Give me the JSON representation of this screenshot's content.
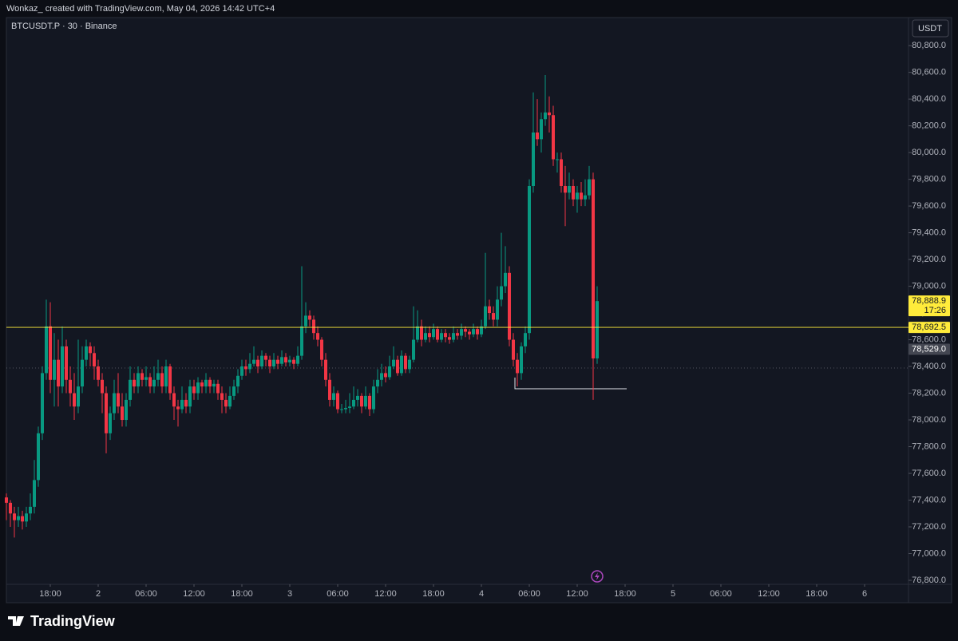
{
  "header": {
    "text": "Wonkaz_ created with TradingView.com, May 04, 2026 14:42 UTC+4"
  },
  "footer": {
    "brand": "TradingView"
  },
  "chart_data": {
    "type": "candlestick",
    "symbol": "BTCUSDT.P · 30 · Binance",
    "currency": "USDT",
    "up_color": "#089981",
    "down_color": "#f23645",
    "grid": false,
    "ylim": [
      76770,
      81010
    ],
    "xlim": [
      0,
      226
    ],
    "yticks": [
      {
        "value": 76800,
        "label": "76,800.0"
      },
      {
        "value": 77000,
        "label": "77,000.0"
      },
      {
        "value": 77200,
        "label": "77,200.0"
      },
      {
        "value": 77400,
        "label": "77,400.0"
      },
      {
        "value": 77600,
        "label": "77,600.0"
      },
      {
        "value": 77800,
        "label": "77,800.0"
      },
      {
        "value": 78000,
        "label": "78,000.0"
      },
      {
        "value": 78200,
        "label": "78,200.0"
      },
      {
        "value": 78400,
        "label": "78,400.0"
      },
      {
        "value": 78600,
        "label": "78,600.0"
      },
      {
        "value": 78800,
        "label": "78,800.0"
      },
      {
        "value": 79000,
        "label": "79,000.0"
      },
      {
        "value": 79200,
        "label": "79,200.0"
      },
      {
        "value": 79400,
        "label": "79,400.0"
      },
      {
        "value": 79600,
        "label": "79,600.0"
      },
      {
        "value": 79800,
        "label": "79,800.0"
      },
      {
        "value": 80000,
        "label": "80,000.0"
      },
      {
        "value": 80200,
        "label": "80,200.0"
      },
      {
        "value": 80400,
        "label": "80,400.0"
      },
      {
        "value": 80600,
        "label": "80,600.0"
      },
      {
        "value": 80800,
        "label": "80,800.0"
      }
    ],
    "xticks": [
      {
        "value": 11,
        "label": "18:00"
      },
      {
        "value": 23,
        "label": "2"
      },
      {
        "value": 35,
        "label": "06:00"
      },
      {
        "value": 47,
        "label": "12:00"
      },
      {
        "value": 59,
        "label": "18:00"
      },
      {
        "value": 71,
        "label": "3"
      },
      {
        "value": 83,
        "label": "06:00"
      },
      {
        "value": 95,
        "label": "12:00"
      },
      {
        "value": 107,
        "label": "18:00"
      },
      {
        "value": 119,
        "label": "4"
      },
      {
        "value": 131,
        "label": "06:00"
      },
      {
        "value": 143,
        "label": "12:00"
      },
      {
        "value": 155,
        "label": "18:00"
      },
      {
        "value": 167,
        "label": "5"
      },
      {
        "value": 179,
        "label": "06:00"
      },
      {
        "value": 191,
        "label": "12:00"
      },
      {
        "value": 203,
        "label": "18:00"
      },
      {
        "value": 215,
        "label": "6"
      }
    ],
    "price_markers": [
      {
        "value": 78888.9,
        "label": "78,888.9",
        "sublabel": "17:26",
        "color": "#ffeb3b",
        "line": false
      },
      {
        "value": 78692.5,
        "label": "78,692.5",
        "color": "#ffeb3b",
        "line": true
      },
      {
        "value": 78529.0,
        "label": "78,529.0",
        "color": "#434651",
        "line": false
      }
    ],
    "ohlc": [
      [
        77420,
        77450,
        77250,
        77380
      ],
      [
        77380,
        77400,
        77200,
        77300
      ],
      [
        77300,
        77350,
        77120,
        77250
      ],
      [
        77250,
        77350,
        77200,
        77280
      ],
      [
        77280,
        77320,
        77180,
        77240
      ],
      [
        77240,
        77350,
        77200,
        77300
      ],
      [
        77300,
        77450,
        77250,
        77350
      ],
      [
        77350,
        77700,
        77300,
        77550
      ],
      [
        77550,
        77950,
        77500,
        77900
      ],
      [
        77900,
        78400,
        77850,
        78350
      ],
      [
        78350,
        78900,
        78300,
        78700
      ],
      [
        78700,
        78880,
        78200,
        78300
      ],
      [
        78300,
        78650,
        78100,
        78450
      ],
      [
        78450,
        78600,
        78100,
        78250
      ],
      [
        78250,
        78700,
        78200,
        78550
      ],
      [
        78550,
        78600,
        78200,
        78300
      ],
      [
        78300,
        78400,
        78100,
        78200
      ],
      [
        78200,
        78350,
        78000,
        78100
      ],
      [
        78100,
        78600,
        78050,
        78250
      ],
      [
        78250,
        78550,
        78200,
        78450
      ],
      [
        78450,
        78600,
        78400,
        78550
      ],
      [
        78550,
        78580,
        78400,
        78500
      ],
      [
        78500,
        78550,
        78300,
        78400
      ],
      [
        78400,
        78450,
        78250,
        78300
      ],
      [
        78300,
        78350,
        78050,
        78200
      ],
      [
        78200,
        78250,
        77750,
        77900
      ],
      [
        77900,
        78100,
        77850,
        78050
      ],
      [
        78050,
        78300,
        78000,
        78200
      ],
      [
        78200,
        78350,
        78050,
        78100
      ],
      [
        78100,
        78200,
        77950,
        78000
      ],
      [
        78000,
        78200,
        77950,
        78150
      ],
      [
        78150,
        78400,
        78100,
        78300
      ],
      [
        78300,
        78350,
        78200,
        78250
      ],
      [
        78250,
        78400,
        78200,
        78350
      ],
      [
        78350,
        78380,
        78250,
        78300
      ],
      [
        78300,
        78400,
        78250,
        78320
      ],
      [
        78320,
        78350,
        78200,
        78250
      ],
      [
        78250,
        78400,
        78200,
        78300
      ],
      [
        78300,
        78450,
        78250,
        78350
      ],
      [
        78350,
        78400,
        78200,
        78250
      ],
      [
        78250,
        78450,
        78200,
        78400
      ],
      [
        78400,
        78420,
        78150,
        78200
      ],
      [
        78200,
        78250,
        78000,
        78100
      ],
      [
        78100,
        78150,
        77950,
        78080
      ],
      [
        78080,
        78250,
        78050,
        78150
      ],
      [
        78150,
        78200,
        78050,
        78100
      ],
      [
        78100,
        78300,
        78050,
        78250
      ],
      [
        78250,
        78300,
        78150,
        78200
      ],
      [
        78200,
        78320,
        78150,
        78280
      ],
      [
        78280,
        78300,
        78200,
        78250
      ],
      [
        78250,
        78350,
        78200,
        78300
      ],
      [
        78300,
        78320,
        78200,
        78250
      ],
      [
        78250,
        78300,
        78200,
        78270
      ],
      [
        78270,
        78300,
        78150,
        78200
      ],
      [
        78200,
        78250,
        78050,
        78150
      ],
      [
        78150,
        78200,
        78050,
        78100
      ],
      [
        78100,
        78250,
        78080,
        78180
      ],
      [
        78180,
        78300,
        78150,
        78250
      ],
      [
        78250,
        78380,
        78200,
        78330
      ],
      [
        78330,
        78450,
        78300,
        78400
      ],
      [
        78400,
        78450,
        78330,
        78380
      ],
      [
        78380,
        78500,
        78350,
        78420
      ],
      [
        78420,
        78550,
        78400,
        78450
      ],
      [
        78450,
        78480,
        78350,
        78400
      ],
      [
        78400,
        78520,
        78380,
        78480
      ],
      [
        78480,
        78500,
        78400,
        78450
      ],
      [
        78450,
        78480,
        78350,
        78400
      ],
      [
        78400,
        78500,
        78380,
        78450
      ],
      [
        78450,
        78480,
        78380,
        78420
      ],
      [
        78420,
        78520,
        78400,
        78470
      ],
      [
        78470,
        78500,
        78400,
        78430
      ],
      [
        78430,
        78480,
        78400,
        78450
      ],
      [
        78450,
        78470,
        78380,
        78420
      ],
      [
        78420,
        78550,
        78400,
        78480
      ],
      [
        78480,
        79150,
        78450,
        78700
      ],
      [
        78700,
        78880,
        78650,
        78780
      ],
      [
        78780,
        78820,
        78700,
        78750
      ],
      [
        78750,
        78780,
        78600,
        78650
      ],
      [
        78650,
        78700,
        78550,
        78600
      ],
      [
        78600,
        78620,
        78400,
        78450
      ],
      [
        78450,
        78500,
        78250,
        78300
      ],
      [
        78300,
        78350,
        78100,
        78150
      ],
      [
        78150,
        78250,
        78100,
        78200
      ],
      [
        78200,
        78220,
        78050,
        78080
      ],
      [
        78080,
        78120,
        78050,
        78080
      ],
      [
        78080,
        78150,
        78050,
        78090
      ],
      [
        78090,
        78200,
        78050,
        78100
      ],
      [
        78100,
        78250,
        78080,
        78150
      ],
      [
        78150,
        78230,
        78100,
        78180
      ],
      [
        78180,
        78200,
        78050,
        78100
      ],
      [
        78100,
        78250,
        78080,
        78180
      ],
      [
        78180,
        78200,
        78030,
        78080
      ],
      [
        78080,
        78300,
        78050,
        78250
      ],
      [
        78250,
        78380,
        78200,
        78300
      ],
      [
        78300,
        78420,
        78250,
        78350
      ],
      [
        78350,
        78400,
        78280,
        78320
      ],
      [
        78320,
        78480,
        78300,
        78400
      ],
      [
        78400,
        78550,
        78380,
        78450
      ],
      [
        78450,
        78480,
        78330,
        78350
      ],
      [
        78350,
        78520,
        78330,
        78480
      ],
      [
        78480,
        78500,
        78350,
        78380
      ],
      [
        78380,
        78480,
        78350,
        78450
      ],
      [
        78450,
        78850,
        78430,
        78600
      ],
      [
        78600,
        78820,
        78580,
        78700
      ],
      [
        78700,
        78750,
        78550,
        78600
      ],
      [
        78600,
        78700,
        78580,
        78650
      ],
      [
        78650,
        78700,
        78580,
        78620
      ],
      [
        78620,
        78720,
        78600,
        78680
      ],
      [
        78680,
        78700,
        78580,
        78600
      ],
      [
        78600,
        78680,
        78580,
        78650
      ],
      [
        78650,
        78680,
        78580,
        78620
      ],
      [
        78620,
        78650,
        78570,
        78600
      ],
      [
        78600,
        78700,
        78580,
        78650
      ],
      [
        78650,
        78680,
        78600,
        78630
      ],
      [
        78630,
        78720,
        78600,
        78680
      ],
      [
        78680,
        78700,
        78620,
        78660
      ],
      [
        78660,
        78680,
        78600,
        78640
      ],
      [
        78640,
        78720,
        78620,
        78680
      ],
      [
        78680,
        78700,
        78600,
        78640
      ],
      [
        78640,
        78750,
        78620,
        78700
      ],
      [
        78700,
        79250,
        78680,
        78850
      ],
      [
        78850,
        78900,
        78750,
        78800
      ],
      [
        78800,
        78850,
        78700,
        78750
      ],
      [
        78750,
        79000,
        78700,
        78900
      ],
      [
        78900,
        79400,
        78850,
        79000
      ],
      [
        79000,
        79300,
        78950,
        79100
      ],
      [
        79100,
        79150,
        78550,
        78600
      ],
      [
        78600,
        78650,
        78400,
        78450
      ],
      [
        78450,
        78500,
        78250,
        78350
      ],
      [
        78350,
        78580,
        78300,
        78550
      ],
      [
        78550,
        78700,
        78500,
        78650
      ],
      [
        78650,
        79800,
        78600,
        79750
      ],
      [
        79750,
        80450,
        79700,
        80150
      ],
      [
        80150,
        80400,
        80050,
        80100
      ],
      [
        80100,
        80300,
        80000,
        80250
      ],
      [
        80250,
        80580,
        80200,
        80300
      ],
      [
        80300,
        80420,
        80150,
        80280
      ],
      [
        80280,
        80350,
        79900,
        79950
      ],
      [
        79950,
        80000,
        79850,
        79950
      ],
      [
        79950,
        80000,
        79700,
        79750
      ],
      [
        79750,
        79900,
        79450,
        79700
      ],
      [
        79700,
        79850,
        79650,
        79750
      ],
      [
        79750,
        79800,
        79600,
        79650
      ],
      [
        79650,
        79750,
        79550,
        79700
      ],
      [
        79700,
        79780,
        79600,
        79650
      ],
      [
        79650,
        79800,
        79600,
        79680
      ],
      [
        79680,
        79900,
        79650,
        79800
      ],
      [
        79800,
        79850,
        78150,
        78460
      ],
      [
        78460,
        79000,
        78420,
        78888.9
      ]
    ]
  }
}
